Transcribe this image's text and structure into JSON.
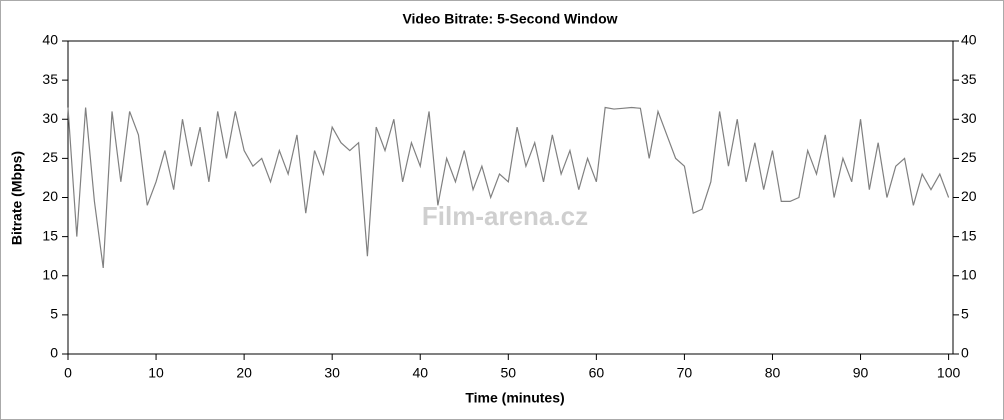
{
  "chart_data": {
    "type": "line",
    "title": "Video Bitrate: 5-Second Window",
    "xlabel": "Time (minutes)",
    "ylabel": "Bitrate (Mbps)",
    "watermark": "Film-arena.cz",
    "x": [
      0,
      1,
      2,
      3,
      4,
      5,
      6,
      7,
      8,
      9,
      10,
      11,
      12,
      13,
      14,
      15,
      16,
      17,
      18,
      19,
      20,
      21,
      22,
      23,
      24,
      25,
      26,
      27,
      28,
      29,
      30,
      31,
      32,
      33,
      34,
      35,
      36,
      37,
      38,
      39,
      40,
      41,
      42,
      43,
      44,
      45,
      46,
      47,
      48,
      49,
      50,
      51,
      52,
      53,
      54,
      55,
      56,
      57,
      58,
      59,
      60,
      61,
      62,
      63,
      64,
      65,
      66,
      67,
      68,
      69,
      70,
      71,
      72,
      73,
      74,
      75,
      76,
      77,
      78,
      79,
      80,
      81,
      82,
      83,
      84,
      85,
      86,
      87,
      88,
      89,
      90,
      91,
      92,
      93,
      94,
      95,
      96,
      97,
      98,
      99,
      100
    ],
    "series": [
      {
        "name": "Bitrate",
        "color": "#808080",
        "values": [
          31.5,
          15,
          31.5,
          19.5,
          11,
          31,
          22,
          31,
          28,
          19,
          22,
          26,
          21,
          30,
          24,
          29,
          22,
          31,
          25,
          31,
          26,
          24,
          25,
          22,
          26,
          23,
          28,
          18,
          26,
          23,
          29,
          27,
          26,
          27,
          12.5,
          29,
          26,
          30,
          22,
          27,
          24,
          31,
          19,
          25,
          22,
          26,
          21,
          24,
          20,
          23,
          22,
          29,
          24,
          27,
          22,
          28,
          23,
          26,
          21,
          25,
          22,
          31.5,
          31.3,
          31.4,
          31.5,
          31.4,
          25,
          31,
          28,
          25,
          24,
          18,
          18.5,
          22,
          31,
          24,
          30,
          22,
          27,
          21,
          26,
          19.5,
          19.5,
          20,
          26,
          23,
          28,
          20,
          25,
          22,
          30,
          21,
          27,
          20,
          24,
          25,
          19,
          23,
          21,
          23,
          20
        ]
      }
    ],
    "xlim": [
      0,
      100.5
    ],
    "xticks": [
      0,
      10,
      20,
      30,
      40,
      50,
      60,
      70,
      80,
      90,
      100
    ],
    "ylim": [
      0,
      40
    ],
    "yticks": [
      0,
      5,
      10,
      15,
      20,
      25,
      30,
      35,
      40
    ],
    "y2lim": [
      0,
      40
    ],
    "y2ticks": [
      0,
      5,
      10,
      15,
      20,
      25,
      30,
      35,
      40
    ],
    "grid": false
  }
}
